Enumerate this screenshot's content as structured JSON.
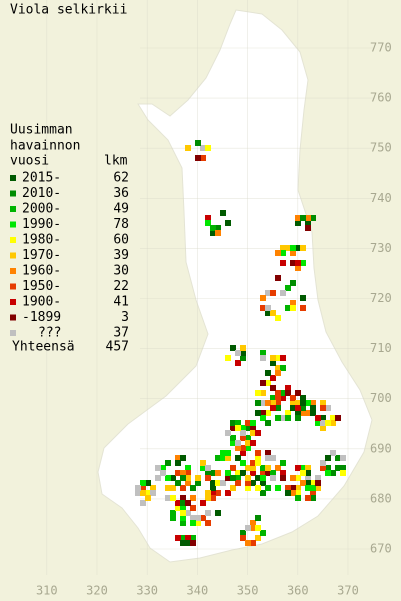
{
  "title": "Viola selkirkii",
  "legend": {
    "header": [
      "Uusimman",
      "havainnon",
      "vuosi"
    ],
    "count_header": "lkm",
    "rows": [
      {
        "label": "2015-",
        "count": 62,
        "color": "#005a00"
      },
      {
        "label": "2010-",
        "count": 36,
        "color": "#008c00"
      },
      {
        "label": "2000-",
        "count": 49,
        "color": "#00b400"
      },
      {
        "label": "1990-",
        "count": 78,
        "color": "#00e600"
      },
      {
        "label": "1980-",
        "count": 60,
        "color": "#ffff00"
      },
      {
        "label": "1970-",
        "count": 39,
        "color": "#ffc800"
      },
      {
        "label": "1960-",
        "count": 30,
        "color": "#ff8200"
      },
      {
        "label": "1950-",
        "count": 22,
        "color": "#e63c00"
      },
      {
        "label": "1900-",
        "count": 41,
        "color": "#c80000"
      },
      {
        "label": "-1899",
        "count": 3,
        "color": "#820000"
      },
      {
        "label": "???",
        "count": 37,
        "color": "#c0c0c0"
      }
    ],
    "total_label": "Yhteensä",
    "total": 457
  },
  "x_axis_labels": [
    310,
    320,
    330,
    340,
    350,
    360,
    370
  ],
  "y_axis_labels": [
    670,
    680,
    690,
    700,
    710,
    720,
    730,
    740,
    750,
    760,
    770
  ]
}
